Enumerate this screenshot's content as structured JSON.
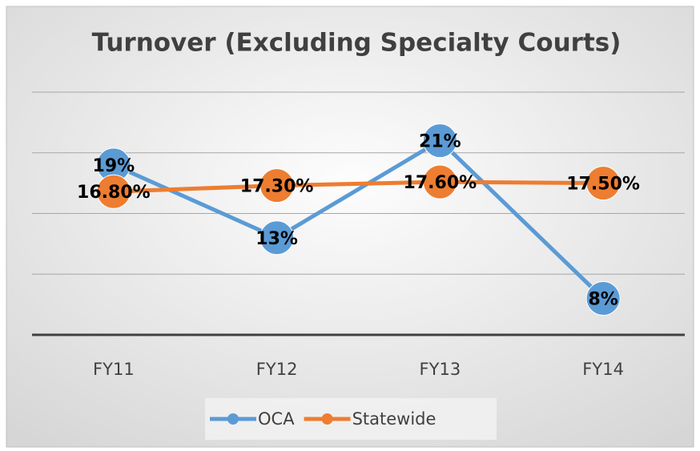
{
  "chart_data": {
    "type": "line",
    "title": "Turnover (Excluding Specialty Courts)",
    "categories": [
      "FY11",
      "FY12",
      "FY13",
      "FY14"
    ],
    "series": [
      {
        "name": "OCA",
        "color": "#5b9bd5",
        "values": [
          19,
          13,
          21,
          8
        ],
        "value_labels": [
          "19%",
          "13%",
          "21%",
          "8%"
        ]
      },
      {
        "name": "Statewide",
        "color": "#ed7d31",
        "values": [
          16.8,
          17.3,
          17.6,
          17.5
        ],
        "value_labels": [
          "16.80%",
          "17.30%",
          "17.60%",
          "17.50%"
        ]
      }
    ],
    "ylim": [
      5,
      25
    ],
    "yticks": [
      5,
      10,
      15,
      20,
      25
    ],
    "grid": true,
    "legend": "bottom"
  }
}
